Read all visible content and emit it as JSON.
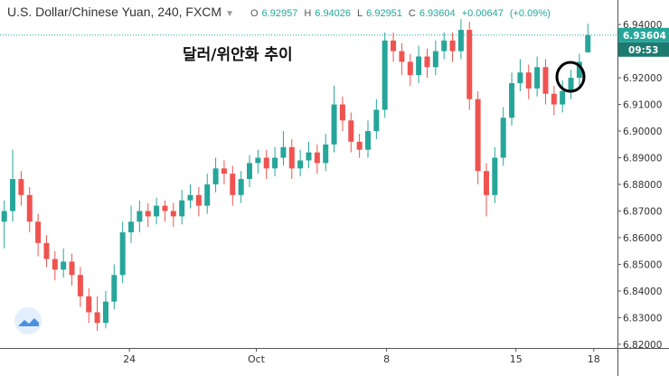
{
  "chart_data": {
    "type": "candlestick",
    "title": "U.S. Dollar/Chinese Yuan, 240, FXCM",
    "legend_values": [
      {
        "label": "O",
        "value": 6.92957
      },
      {
        "label": "H",
        "value": 6.94026
      },
      {
        "label": "L",
        "value": 6.92951
      },
      {
        "label": "C",
        "value": 6.93604
      }
    ],
    "change": "+0.00647",
    "change_percent": "(+0.09%)",
    "annotation": "달러/위안화 추이",
    "last_price": 6.93604,
    "countdown": "09:53",
    "up_color": "#26a69a",
    "down_color": "#ef5350",
    "x": [
      0,
      1,
      2,
      3,
      4,
      5,
      6,
      7,
      8,
      9,
      10,
      11,
      12,
      13,
      14,
      15,
      16,
      17,
      18,
      19,
      20,
      21,
      22,
      23,
      24,
      25,
      26,
      27,
      28,
      29,
      30,
      31,
      32,
      33,
      34,
      35,
      36,
      37,
      38,
      39,
      40,
      41,
      42,
      43,
      44,
      45,
      46,
      47,
      48,
      49,
      50,
      51,
      52,
      53,
      54,
      55,
      56,
      57,
      58,
      59,
      60,
      61,
      62,
      63,
      64,
      65,
      66,
      67,
      68,
      69
    ],
    "open": [
      6.866,
      6.87,
      6.882,
      6.876,
      6.866,
      6.858,
      6.852,
      6.848,
      6.851,
      6.846,
      6.838,
      6.832,
      6.828,
      6.836,
      6.846,
      6.862,
      6.866,
      6.87,
      6.868,
      6.872,
      6.87,
      6.868,
      6.874,
      6.876,
      6.872,
      6.88,
      6.886,
      6.884,
      6.876,
      6.882,
      6.888,
      6.89,
      6.886,
      6.89,
      6.894,
      6.886,
      6.889,
      6.892,
      6.888,
      6.895,
      6.91,
      6.904,
      6.896,
      6.893,
      6.9,
      6.908,
      6.934,
      6.93,
      6.926,
      6.921,
      6.928,
      6.924,
      6.93,
      6.934,
      6.93,
      6.938,
      6.912,
      6.885,
      6.876,
      6.89,
      6.905,
      6.918,
      6.922,
      6.916,
      6.924,
      6.914,
      6.91,
      6.915,
      6.92,
      6.92957
    ],
    "high": [
      6.874,
      6.893,
      6.885,
      6.879,
      6.869,
      6.861,
      6.855,
      6.856,
      6.854,
      6.849,
      6.841,
      6.838,
      6.84,
      6.85,
      6.866,
      6.872,
      6.874,
      6.873,
      6.875,
      6.874,
      6.873,
      6.878,
      6.88,
      6.879,
      6.884,
      6.89,
      6.889,
      6.887,
      6.885,
      6.891,
      6.893,
      6.893,
      6.894,
      6.9,
      6.897,
      6.893,
      6.896,
      6.895,
      6.899,
      6.917,
      6.913,
      6.907,
      6.899,
      6.904,
      6.912,
      6.937,
      6.937,
      6.933,
      6.929,
      6.932,
      6.931,
      6.934,
      6.937,
      6.937,
      6.942,
      6.941,
      6.915,
      6.888,
      6.894,
      6.909,
      6.922,
      6.927,
      6.925,
      6.928,
      6.927,
      6.917,
      6.919,
      6.923,
      6.929,
      6.94026
    ],
    "low": [
      6.856,
      6.866,
      6.872,
      6.862,
      6.853,
      6.849,
      6.844,
      6.845,
      6.842,
      6.834,
      6.828,
      6.825,
      6.826,
      6.833,
      6.843,
      6.858,
      6.862,
      6.864,
      6.865,
      6.866,
      6.864,
      6.865,
      6.871,
      6.868,
      6.869,
      6.877,
      6.88,
      6.872,
      6.873,
      6.879,
      6.884,
      6.882,
      6.883,
      6.887,
      6.882,
      6.883,
      6.886,
      6.884,
      6.885,
      6.892,
      6.9,
      6.892,
      6.89,
      6.89,
      6.897,
      6.905,
      6.926,
      6.921,
      6.917,
      6.918,
      6.92,
      6.921,
      6.927,
      6.926,
      6.927,
      6.908,
      6.88,
      6.868,
      6.873,
      6.887,
      6.902,
      6.915,
      6.912,
      6.913,
      6.91,
      6.906,
      6.907,
      6.912,
      6.917,
      6.92951
    ],
    "close": [
      6.87,
      6.882,
      6.876,
      6.866,
      6.858,
      6.852,
      6.848,
      6.851,
      6.846,
      6.838,
      6.832,
      6.828,
      6.836,
      6.846,
      6.862,
      6.866,
      6.87,
      6.868,
      6.872,
      6.87,
      6.868,
      6.874,
      6.876,
      6.872,
      6.88,
      6.886,
      6.884,
      6.876,
      6.882,
      6.888,
      6.89,
      6.886,
      6.89,
      6.894,
      6.886,
      6.889,
      6.892,
      6.888,
      6.895,
      6.91,
      6.904,
      6.896,
      6.893,
      6.9,
      6.908,
      6.934,
      6.93,
      6.926,
      6.921,
      6.928,
      6.924,
      6.93,
      6.934,
      6.93,
      6.938,
      6.912,
      6.885,
      6.876,
      6.89,
      6.905,
      6.918,
      6.922,
      6.916,
      6.924,
      6.914,
      6.91,
      6.915,
      6.92,
      6.926,
      6.93604
    ],
    "xlim": [
      -0.5,
      72.5
    ],
    "xticks": [
      {
        "value": 14.8,
        "label": "24"
      },
      {
        "value": 29.8,
        "label": "Oct"
      },
      {
        "value": 45.2,
        "label": "8"
      },
      {
        "value": 60.5,
        "label": "15"
      },
      {
        "value": 69.7,
        "label": "18"
      }
    ],
    "ylim": [
      6.8186,
      6.9492
    ],
    "yticks": [
      {
        "value": 6.82,
        "label": "6.82000"
      },
      {
        "value": 6.83,
        "label": "6.83000"
      },
      {
        "value": 6.84,
        "label": "6.84000"
      },
      {
        "value": 6.85,
        "label": "6.85000"
      },
      {
        "value": 6.86,
        "label": "6.86000"
      },
      {
        "value": 6.87,
        "label": "6.87000"
      },
      {
        "value": 6.88,
        "label": "6.88000"
      },
      {
        "value": 6.89,
        "label": "6.89000"
      },
      {
        "value": 6.9,
        "label": "6.90000"
      },
      {
        "value": 6.91,
        "label": "6.91000"
      },
      {
        "value": 6.92,
        "label": "6.92000"
      },
      {
        "value": 6.93,
        "label": "6.93000"
      },
      {
        "value": 6.94,
        "label": "6.94000"
      }
    ],
    "grid": false
  }
}
